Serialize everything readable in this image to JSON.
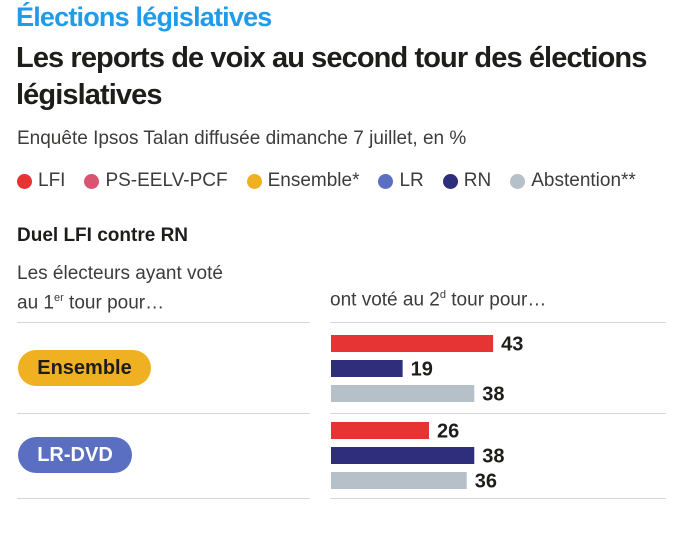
{
  "header": {
    "kicker": "Élections législatives",
    "title": "Les reports de voix au second tour des élections législatives",
    "subtitle": "Enquête Ipsos Talan diffusée dimanche 7 juillet, en %"
  },
  "legend": [
    {
      "label": "LFI",
      "color": "#e63333"
    },
    {
      "label": "PS-EELV-PCF",
      "color": "#d95470"
    },
    {
      "label": "Ensemble*",
      "color": "#efb021"
    },
    {
      "label": "LR",
      "color": "#5a6fc2"
    },
    {
      "label": "RN",
      "color": "#2e2e7c"
    },
    {
      "label": "Abstention**",
      "color": "#b5c0c8"
    }
  ],
  "section": {
    "title": "Duel LFI contre RN",
    "left_header_line1": "Les électeurs ayant voté",
    "left_header_line2_pre": "au 1",
    "left_header_sup": "er",
    "left_header_line2_post": " tour pour…",
    "right_header_pre": "ont voté au 2",
    "right_header_sup": "d",
    "right_header_post": " tour pour…"
  },
  "chart_data": {
    "type": "bar",
    "orientation": "horizontal",
    "title": "Duel LFI contre RN",
    "categories": [
      "Ensemble",
      "LR-DVD"
    ],
    "category_colors": [
      "#efb021",
      "#5a6fc2"
    ],
    "category_text_colors": [
      "#1d1d1b",
      "#ffffff"
    ],
    "series": [
      {
        "name": "LFI",
        "color": "#e63333",
        "values": [
          43,
          26
        ]
      },
      {
        "name": "RN",
        "color": "#2e2e7c",
        "values": [
          19,
          38
        ]
      },
      {
        "name": "Abstention**",
        "color": "#b5c0c8",
        "values": [
          38,
          36
        ]
      }
    ],
    "xlim": [
      0,
      100
    ],
    "grid": false,
    "data_labels": true
  }
}
